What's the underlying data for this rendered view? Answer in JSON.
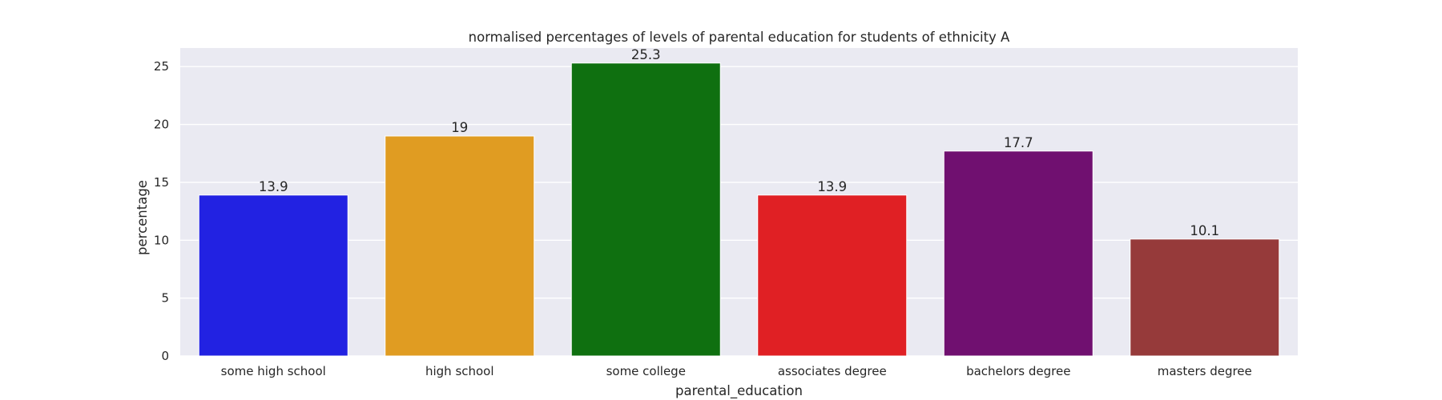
{
  "chart_data": {
    "type": "bar",
    "title": "normalised percentages of levels of parental education for students of ethnicity A",
    "xlabel": "parental_education",
    "ylabel": "percentage",
    "categories": [
      "some high school",
      "high school",
      "some college",
      "associates degree",
      "bachelors degree",
      "masters degree"
    ],
    "values": [
      13.9,
      19,
      25.3,
      13.9,
      17.7,
      10.1
    ],
    "value_labels": [
      "13.9",
      "19",
      "25.3",
      "13.9",
      "17.7",
      "10.1"
    ],
    "colors": [
      "#2222e2",
      "#e09c22",
      "#0f7010",
      "#e02024",
      "#701070",
      "#963a3a"
    ],
    "ylim": [
      0,
      26.6
    ],
    "yticks": [
      0,
      5,
      10,
      15,
      20,
      25
    ],
    "grid": true,
    "background_color": "#eaeaf2"
  }
}
